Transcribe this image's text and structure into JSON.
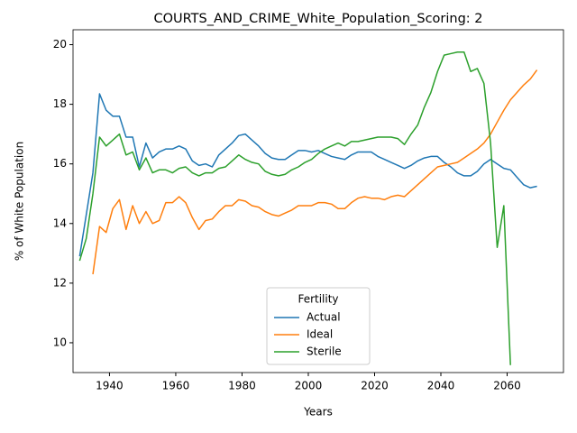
{
  "chart_data": {
    "type": "line",
    "title": "COURTS_AND_CRIME_White_Population_Scoring: 2",
    "x_label": "Years",
    "y_label": "% of White Population",
    "legend_title": "Fertility",
    "legend": "lower center",
    "x": [
      1931,
      1933,
      1935,
      1937,
      1939,
      1941,
      1943,
      1945,
      1947,
      1949,
      1951,
      1953,
      1955,
      1957,
      1959,
      1961,
      1963,
      1965,
      1967,
      1969,
      1971,
      1973,
      1975,
      1977,
      1979,
      1981,
      1983,
      1985,
      1987,
      1989,
      1991,
      1993,
      1995,
      1997,
      1999,
      2001,
      2003,
      2005,
      2007,
      2009,
      2011,
      2013,
      2015,
      2017,
      2019,
      2021,
      2023,
      2025,
      2027,
      2029,
      2031,
      2033,
      2035,
      2037,
      2039,
      2041,
      2043,
      2045,
      2047,
      2049,
      2051,
      2053,
      2055,
      2057,
      2059,
      2061,
      2063,
      2065,
      2067,
      2069
    ],
    "series": [
      {
        "name": "Actual",
        "color": "#1f77b4",
        "values": [
          12.9,
          14.3,
          15.7,
          18.35,
          17.8,
          17.6,
          17.6,
          16.9,
          16.9,
          15.9,
          16.7,
          16.2,
          16.4,
          16.5,
          16.5,
          16.6,
          16.5,
          16.1,
          15.95,
          16.0,
          15.9,
          16.3,
          16.5,
          16.7,
          16.95,
          17.0,
          16.8,
          16.6,
          16.35,
          16.2,
          16.15,
          16.15,
          16.3,
          16.45,
          16.45,
          16.4,
          16.45,
          16.35,
          16.25,
          16.2,
          16.15,
          16.3,
          16.4,
          16.4,
          16.4,
          16.25,
          16.15,
          16.05,
          15.95,
          15.85,
          15.95,
          16.1,
          16.2,
          16.25,
          16.25,
          16.05,
          15.9,
          15.7,
          15.6,
          15.6,
          15.75,
          16.0,
          16.15,
          16.0,
          15.85,
          15.8,
          15.55,
          15.3,
          15.2,
          15.25
        ]
      },
      {
        "name": "Ideal",
        "color": "#ff7f0e",
        "values": [
          null,
          null,
          12.3,
          13.9,
          13.7,
          14.5,
          14.8,
          13.8,
          14.6,
          14.0,
          14.4,
          14.0,
          14.1,
          14.7,
          14.7,
          14.9,
          14.7,
          14.2,
          13.8,
          14.1,
          14.15,
          14.4,
          14.6,
          14.6,
          14.8,
          14.75,
          14.6,
          14.55,
          14.4,
          14.3,
          14.25,
          14.35,
          14.45,
          14.6,
          14.6,
          14.6,
          14.7,
          14.7,
          14.65,
          14.5,
          14.5,
          14.7,
          14.85,
          14.9,
          14.85,
          14.85,
          14.8,
          14.9,
          14.95,
          14.9,
          15.1,
          15.3,
          15.5,
          15.7,
          15.9,
          15.95,
          16.0,
          16.05,
          16.2,
          16.35,
          16.5,
          16.7,
          17.0,
          17.4,
          17.8,
          18.15,
          18.4,
          18.65,
          18.85,
          19.15
        ]
      },
      {
        "name": "Sterile",
        "color": "#2ca02c",
        "values": [
          12.75,
          13.5,
          15.0,
          16.9,
          16.6,
          16.8,
          17.0,
          16.3,
          16.4,
          15.8,
          16.2,
          15.7,
          15.8,
          15.8,
          15.7,
          15.85,
          15.9,
          15.7,
          15.6,
          15.7,
          15.7,
          15.85,
          15.9,
          16.1,
          16.3,
          16.15,
          16.05,
          16.0,
          15.75,
          15.65,
          15.6,
          15.65,
          15.8,
          15.9,
          16.05,
          16.15,
          16.35,
          16.5,
          16.6,
          16.7,
          16.6,
          16.75,
          16.75,
          16.8,
          16.85,
          16.9,
          16.9,
          16.9,
          16.85,
          16.65,
          17.0,
          17.3,
          17.9,
          18.4,
          19.1,
          19.65,
          19.7,
          19.75,
          19.75,
          19.1,
          19.2,
          18.7,
          16.7,
          13.2,
          14.6,
          9.25,
          null,
          null,
          null,
          null
        ]
      }
    ],
    "xlim": [
      1929,
      2077
    ],
    "xticks": [
      1940,
      1960,
      1980,
      2000,
      2020,
      2040,
      2060
    ],
    "ylim": [
      9.0,
      20.5
    ],
    "yticks": [
      10,
      12,
      14,
      16,
      18,
      20
    ],
    "grid": false
  }
}
